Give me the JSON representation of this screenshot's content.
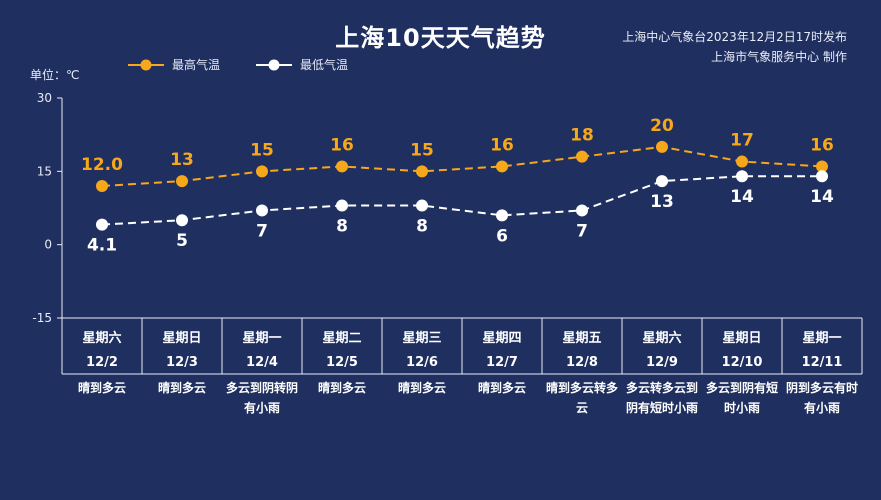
{
  "title": "上海10天天气趋势",
  "source": [
    "上海中心气象台2023年12月2日17时发布",
    "上海市气象服务中心 制作"
  ],
  "unit_label": "单位：℃",
  "legend": {
    "high": "最高气温",
    "low": "最低气温"
  },
  "colors": {
    "background": "#1f2f5f",
    "high": "#f6a71a",
    "low": "#ffffff"
  },
  "chart_data": {
    "type": "line",
    "title": "上海10天天气趋势",
    "ylabel": "单位：℃",
    "ylim": [
      -15,
      30
    ],
    "yticks": [
      30,
      15,
      0,
      -15
    ],
    "grid": false,
    "legend_position": "top-left",
    "categories": [
      "12/2",
      "12/3",
      "12/4",
      "12/5",
      "12/6",
      "12/7",
      "12/8",
      "12/9",
      "12/10",
      "12/11"
    ],
    "weekdays": [
      "星期六",
      "星期日",
      "星期一",
      "星期二",
      "星期三",
      "星期四",
      "星期五",
      "星期六",
      "星期日",
      "星期一"
    ],
    "weather": [
      "晴到多云",
      "晴到多云",
      "多云到阴转阴有小雨",
      "晴到多云",
      "晴到多云",
      "晴到多云",
      "晴到多云转多云",
      "多云转多云到阴有短时小雨",
      "多云到阴有短时小雨",
      "阴到多云有时有小雨"
    ],
    "series": [
      {
        "name": "最高气温",
        "values": [
          12.0,
          13,
          15,
          16,
          15,
          16,
          18,
          20,
          17,
          16
        ],
        "labels": [
          "12.0",
          "13",
          "15",
          "16",
          "15",
          "16",
          "18",
          "20",
          "17",
          "16"
        ]
      },
      {
        "name": "最低气温",
        "values": [
          4.1,
          5,
          7,
          8,
          8,
          6,
          7,
          13,
          14,
          14
        ],
        "labels": [
          "4.1",
          "5",
          "7",
          "8",
          "8",
          "6",
          "7",
          "13",
          "14",
          "14"
        ]
      }
    ]
  }
}
